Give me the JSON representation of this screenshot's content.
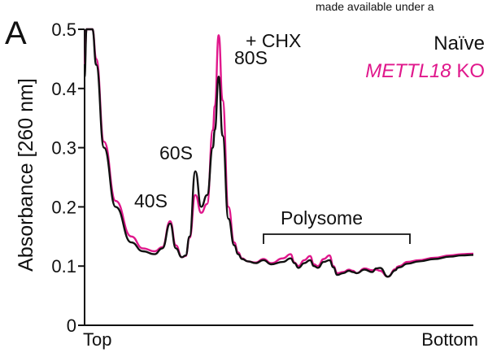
{
  "panel_label": "A",
  "header_fragment": "made available under a",
  "chart_data": {
    "type": "line",
    "title": "+ CHX",
    "ylabel": "Absorbance [260 nm]",
    "xlabel": "",
    "x_tick_labels": [
      "Top",
      "Bottom"
    ],
    "xlim": [
      0,
      1
    ],
    "ylim": [
      0,
      0.5
    ],
    "y_ticks": [
      "0",
      "0.1",
      "0.2",
      "0.3",
      "0.4",
      "0.5"
    ],
    "grid": false,
    "legend_position": "top-right",
    "annotations": {
      "peak_40s": "40S",
      "peak_60s": "60S",
      "peak_80s": "80S",
      "polysome": "Polysome"
    },
    "series": [
      {
        "name": "Naïve",
        "color": "#111111",
        "x": [
          0.0,
          0.005,
          0.012,
          0.02,
          0.03,
          0.05,
          0.08,
          0.12,
          0.15,
          0.18,
          0.2,
          0.22,
          0.235,
          0.25,
          0.26,
          0.27,
          0.285,
          0.3,
          0.315,
          0.33,
          0.335,
          0.345,
          0.355,
          0.37,
          0.385,
          0.395,
          0.405,
          0.42,
          0.44,
          0.46,
          0.48,
          0.51,
          0.53,
          0.54,
          0.55,
          0.565,
          0.58,
          0.59,
          0.6,
          0.615,
          0.63,
          0.64,
          0.65,
          0.665,
          0.68,
          0.69,
          0.7,
          0.72,
          0.74,
          0.75,
          0.76,
          0.78,
          0.8,
          0.805,
          0.81,
          0.83,
          0.86,
          0.9,
          0.94,
          0.97,
          1.0
        ],
        "y": [
          0.42,
          0.5,
          0.56,
          0.55,
          0.44,
          0.3,
          0.2,
          0.14,
          0.125,
          0.12,
          0.13,
          0.172,
          0.13,
          0.115,
          0.118,
          0.15,
          0.26,
          0.2,
          0.22,
          0.3,
          0.33,
          0.42,
          0.32,
          0.18,
          0.135,
          0.12,
          0.112,
          0.108,
          0.105,
          0.11,
          0.103,
          0.107,
          0.113,
          0.105,
          0.097,
          0.105,
          0.11,
          0.1,
          0.097,
          0.107,
          0.11,
          0.098,
          0.085,
          0.088,
          0.092,
          0.09,
          0.088,
          0.094,
          0.09,
          0.096,
          0.097,
          0.082,
          0.093,
          0.097,
          0.098,
          0.104,
          0.108,
          0.112,
          0.116,
          0.118,
          0.119
        ]
      },
      {
        "name": "METTL18 KO",
        "color": "#e0188c",
        "x": [
          0.0,
          0.005,
          0.012,
          0.02,
          0.03,
          0.05,
          0.08,
          0.12,
          0.15,
          0.18,
          0.2,
          0.22,
          0.235,
          0.25,
          0.26,
          0.27,
          0.285,
          0.3,
          0.315,
          0.33,
          0.335,
          0.345,
          0.355,
          0.37,
          0.385,
          0.395,
          0.405,
          0.42,
          0.44,
          0.46,
          0.48,
          0.51,
          0.53,
          0.54,
          0.55,
          0.565,
          0.58,
          0.59,
          0.6,
          0.615,
          0.63,
          0.64,
          0.65,
          0.665,
          0.68,
          0.69,
          0.7,
          0.72,
          0.74,
          0.75,
          0.76,
          0.78,
          0.8,
          0.805,
          0.81,
          0.83,
          0.86,
          0.9,
          0.94,
          0.97,
          1.0
        ],
        "y": [
          0.44,
          0.52,
          0.57,
          0.55,
          0.45,
          0.31,
          0.21,
          0.15,
          0.13,
          0.125,
          0.132,
          0.176,
          0.135,
          0.115,
          0.117,
          0.148,
          0.22,
          0.19,
          0.205,
          0.33,
          0.37,
          0.49,
          0.38,
          0.2,
          0.14,
          0.123,
          0.113,
          0.108,
          0.106,
          0.112,
          0.105,
          0.113,
          0.12,
          0.106,
          0.1,
          0.11,
          0.117,
          0.103,
          0.1,
          0.112,
          0.118,
          0.1,
          0.088,
          0.09,
          0.094,
          0.092,
          0.088,
          0.096,
          0.093,
          0.094,
          0.092,
          0.082,
          0.095,
          0.099,
          0.1,
          0.107,
          0.11,
          0.114,
          0.118,
          0.12,
          0.121
        ]
      }
    ]
  }
}
